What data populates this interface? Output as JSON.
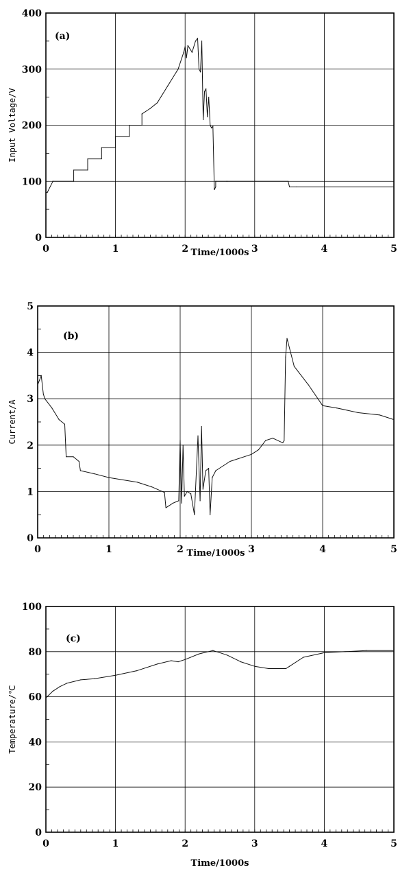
{
  "chart_data": [
    {
      "type": "line",
      "panel_label": "(a)",
      "xlabel": "Time/1000s",
      "ylabel": "Input Voltage/V",
      "xlim": [
        0,
        5
      ],
      "ylim": [
        0,
        400
      ],
      "xticks": [
        "0",
        "1",
        "2",
        "3",
        "4",
        "5"
      ],
      "yticks": [
        "0",
        "100",
        "200",
        "300",
        "400"
      ],
      "grid": true,
      "series": [
        {
          "x": [
            0,
            0.02,
            0.1,
            0.1,
            0.4,
            0.4,
            0.6,
            0.6,
            0.8,
            0.8,
            1.0,
            1.0,
            1.2,
            1.2,
            1.38,
            1.38,
            1.5,
            1.6,
            1.75,
            1.9,
            1.98,
            2.0,
            2.02,
            2.04,
            2.1,
            2.15,
            2.18,
            2.2,
            2.22,
            2.24,
            2.26,
            2.28,
            2.3,
            2.32,
            2.34,
            2.36,
            2.38,
            2.4,
            2.42,
            2.44,
            2.44,
            2.6,
            3.0,
            3.48,
            3.5,
            3.6,
            4.0,
            5.0
          ],
          "y": [
            80,
            80,
            100,
            100,
            100,
            120,
            120,
            140,
            140,
            160,
            160,
            180,
            180,
            200,
            200,
            220,
            230,
            240,
            270,
            300,
            330,
            340,
            320,
            342,
            330,
            350,
            355,
            300,
            295,
            350,
            210,
            260,
            265,
            215,
            250,
            200,
            195,
            198,
            85,
            90,
            100,
            100,
            100,
            100,
            90,
            90,
            90,
            90
          ]
        }
      ]
    },
    {
      "type": "line",
      "panel_label": "(b)",
      "xlabel": "Time/1000s",
      "ylabel": "Current/A",
      "xlim": [
        0,
        5
      ],
      "ylim": [
        0,
        5
      ],
      "xticks": [
        "0",
        "1",
        "2",
        "3",
        "4",
        "5"
      ],
      "yticks": [
        "0",
        "1",
        "2",
        "3",
        "4",
        "5"
      ],
      "grid": true,
      "series": [
        {
          "x": [
            0,
            0.05,
            0.08,
            0.1,
            0.2,
            0.3,
            0.38,
            0.4,
            0.5,
            0.58,
            0.6,
            0.8,
            1.0,
            1.2,
            1.4,
            1.6,
            1.78,
            1.8,
            1.9,
            1.98,
            2.0,
            2.02,
            2.04,
            2.06,
            2.1,
            2.15,
            2.2,
            2.25,
            2.28,
            2.3,
            2.32,
            2.36,
            2.4,
            2.42,
            2.45,
            2.5,
            2.7,
            3.0,
            3.1,
            3.2,
            3.3,
            3.44,
            3.46,
            3.48,
            3.5,
            3.6,
            3.8,
            4.0,
            4.2,
            4.5,
            4.8,
            5.0
          ],
          "y": [
            3.3,
            3.5,
            3.1,
            3.0,
            2.8,
            2.55,
            2.45,
            1.75,
            1.75,
            1.65,
            1.45,
            1.38,
            1.3,
            1.25,
            1.2,
            1.1,
            0.98,
            0.65,
            0.75,
            0.8,
            2.1,
            0.75,
            2.0,
            0.9,
            1.0,
            0.95,
            0.5,
            2.2,
            0.8,
            2.4,
            1.05,
            1.45,
            1.5,
            0.5,
            1.3,
            1.45,
            1.65,
            1.8,
            1.9,
            2.1,
            2.15,
            2.05,
            2.1,
            3.9,
            4.3,
            3.7,
            3.3,
            2.85,
            2.8,
            2.7,
            2.65,
            2.55
          ]
        }
      ]
    },
    {
      "type": "line",
      "panel_label": "(c)",
      "xlabel": "Time/1000s",
      "ylabel": "Temperature/℃",
      "xlim": [
        0,
        5
      ],
      "ylim": [
        0,
        100
      ],
      "xticks": [
        "0",
        "1",
        "2",
        "3",
        "4",
        "5"
      ],
      "yticks": [
        "0",
        "20",
        "40",
        "60",
        "80",
        "100"
      ],
      "grid": true,
      "series": [
        {
          "x": [
            0,
            0.1,
            0.2,
            0.3,
            0.5,
            0.7,
            1.0,
            1.3,
            1.6,
            1.8,
            1.9,
            2.0,
            2.2,
            2.4,
            2.6,
            2.8,
            3.0,
            3.2,
            3.45,
            3.5,
            3.7,
            4.0,
            4.3,
            4.6,
            5.0
          ],
          "y": [
            59.5,
            62.5,
            64.5,
            66,
            67.5,
            68,
            69.5,
            71.5,
            74.5,
            76,
            75.5,
            76.5,
            79,
            80.5,
            78.5,
            75.5,
            73.5,
            72.5,
            72.5,
            73.5,
            77.5,
            79.5,
            80,
            80.5,
            80.5
          ]
        }
      ]
    }
  ]
}
